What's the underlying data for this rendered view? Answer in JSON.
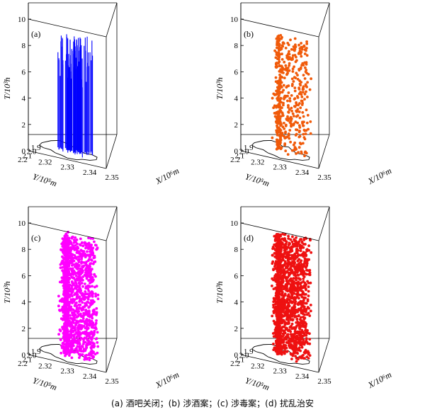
{
  "caption": "(a) 酒吧关闭；(b) 涉酒案；(c) 涉毒案；(d) 扰乱治安",
  "axis_labels": {
    "t": "T/10³h",
    "y": "Y/10⁵m",
    "x": "X/10⁶m"
  },
  "chart_data": [
    {
      "panel": "(a)",
      "type": "scatter",
      "mark": "vertical-line",
      "color": "#0000ff",
      "xlim": [
        2.315,
        2.35
      ],
      "ylim": [
        1.8,
        2.2
      ],
      "zlim": [
        0,
        10
      ],
      "x_ticks": [
        2.32,
        2.33,
        2.34,
        2.35
      ],
      "y_ticks": [
        1.9,
        2.0,
        2.1,
        2.2
      ],
      "z_ticks": [
        0,
        2,
        4,
        6,
        8,
        10
      ],
      "point_count": 95,
      "x_center": 2.332,
      "x_spread": 0.006,
      "y_center": 2.0,
      "y_spread": 0.06,
      "z_range": [
        0,
        8.8
      ]
    },
    {
      "panel": "(b)",
      "type": "scatter",
      "mark": "point",
      "color": "#f05a0a",
      "xlim": [
        2.315,
        2.35
      ],
      "ylim": [
        1.8,
        2.2
      ],
      "zlim": [
        0,
        10
      ],
      "x_ticks": [
        2.32,
        2.33,
        2.34,
        2.35
      ],
      "y_ticks": [
        1.9,
        2.0,
        2.1,
        2.2
      ],
      "z_ticks": [
        0,
        2,
        4,
        6,
        8,
        10
      ],
      "point_count": 520,
      "z_range": [
        0,
        8.6
      ]
    },
    {
      "panel": "(c)",
      "type": "scatter",
      "mark": "point",
      "color": "#ff00ff",
      "xlim": [
        2.315,
        2.35
      ],
      "ylim": [
        1.8,
        2.2
      ],
      "zlim": [
        0,
        10
      ],
      "x_ticks": [
        2.32,
        2.33,
        2.34,
        2.35
      ],
      "y_ticks": [
        1.9,
        2.0,
        2.1,
        2.2
      ],
      "z_ticks": [
        0,
        2,
        4,
        6,
        8,
        10
      ],
      "point_count": 1500,
      "z_range": [
        0,
        9.0
      ]
    },
    {
      "panel": "(d)",
      "type": "scatter",
      "mark": "point",
      "color": "#ee1111",
      "xlim": [
        2.315,
        2.35
      ],
      "ylim": [
        1.8,
        2.2
      ],
      "zlim": [
        0,
        10
      ],
      "x_ticks": [
        2.32,
        2.33,
        2.34,
        2.35
      ],
      "y_ticks": [
        1.9,
        2.0,
        2.1,
        2.2
      ],
      "z_ticks": [
        0,
        2,
        4,
        6,
        8,
        10
      ],
      "point_count": 1700,
      "z_range": [
        0,
        9.0
      ]
    }
  ]
}
